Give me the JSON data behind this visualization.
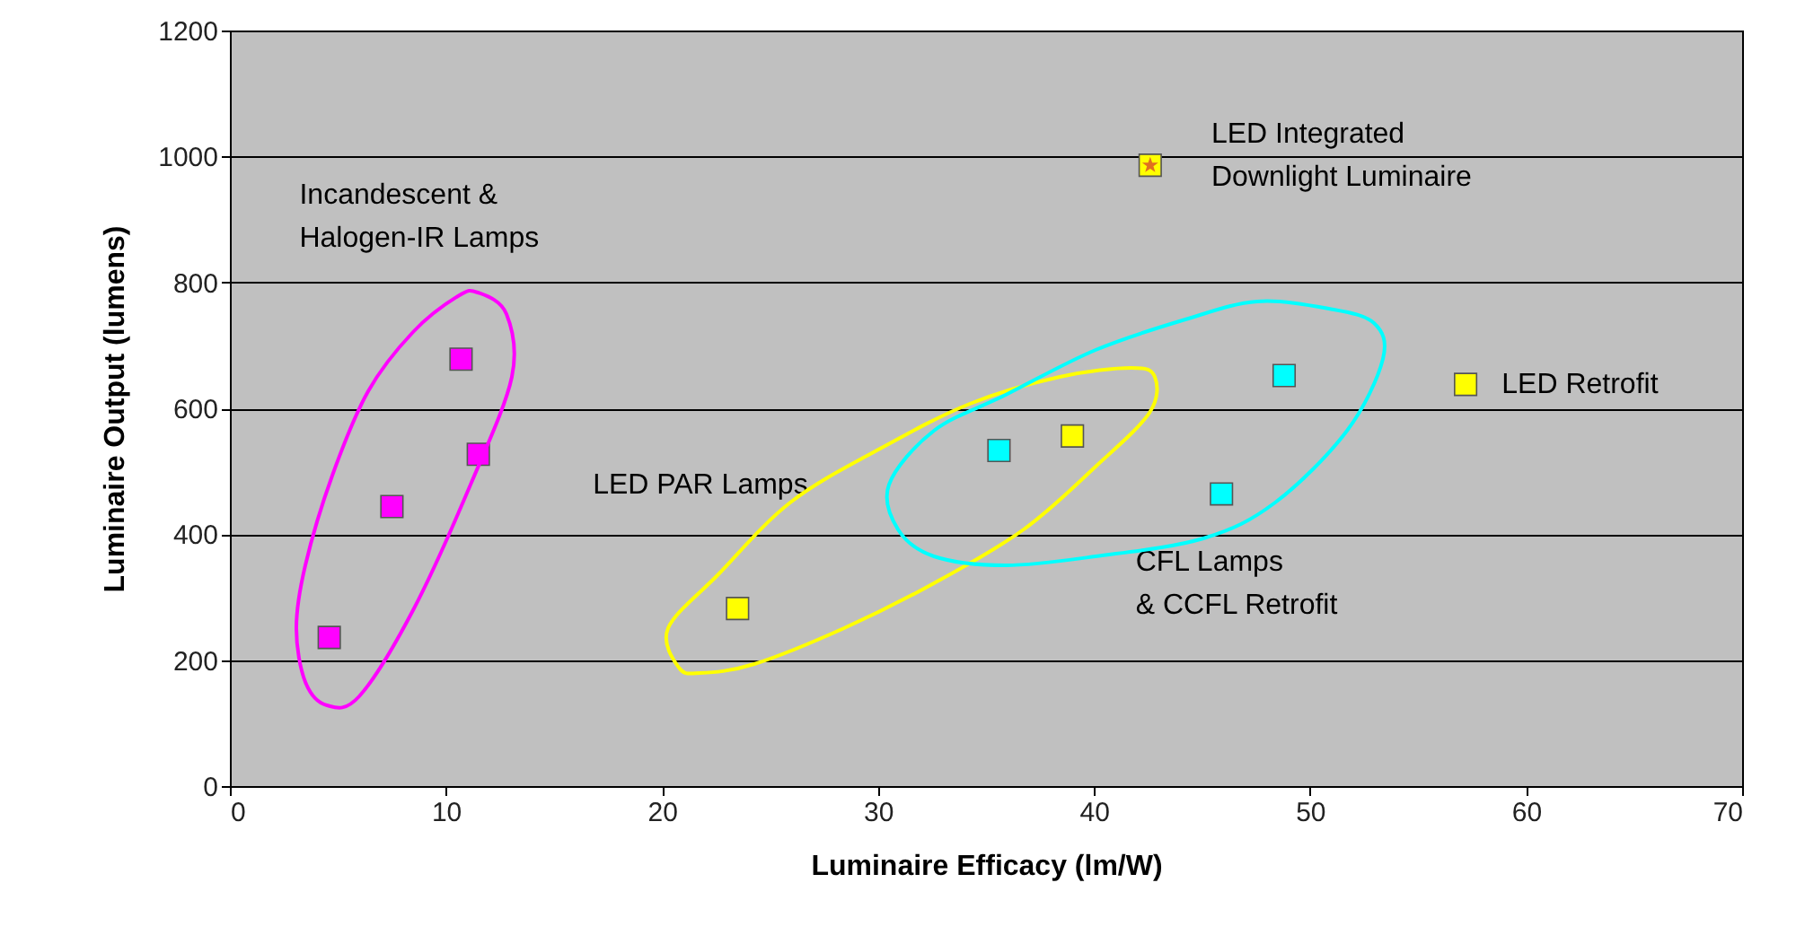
{
  "chart_data": {
    "type": "scatter",
    "xlabel": "Luminaire Efficacy (lm/W)",
    "ylabel": "Luminaire Output (lumens)",
    "xlim": [
      0,
      70
    ],
    "xticks": [
      0,
      10,
      20,
      30,
      40,
      50,
      60,
      70
    ],
    "ylim": [
      0,
      1200
    ],
    "yticks": [
      0,
      200,
      400,
      600,
      800,
      1000,
      1200
    ],
    "grid": "y",
    "marker": "square",
    "series": [
      {
        "color": "#ff00ff",
        "x": [
          4.6,
          7.5,
          10.7,
          11.5
        ],
        "values": [
          236,
          444,
          678,
          527
        ]
      },
      {
        "color": "#ffff00",
        "x": [
          23.5,
          39,
          42.6,
          57.2
        ],
        "values": [
          282,
          556,
          986,
          638
        ]
      },
      {
        "color": "#e07020",
        "marker": "star",
        "x": [
          42.6
        ],
        "values": [
          986
        ]
      },
      {
        "color": "#00ffff",
        "x": [
          35.6,
          45.9,
          48.8
        ],
        "values": [
          533,
          464,
          652
        ]
      }
    ],
    "annotations": [
      "Incandescent &\nHalogen-IR Lamps",
      "LED Integrated\nDownlight Luminaire",
      "LED PAR Lamps",
      "CFL Lamps\n& CCFL Retrofit",
      "LED Retrofit"
    ]
  }
}
